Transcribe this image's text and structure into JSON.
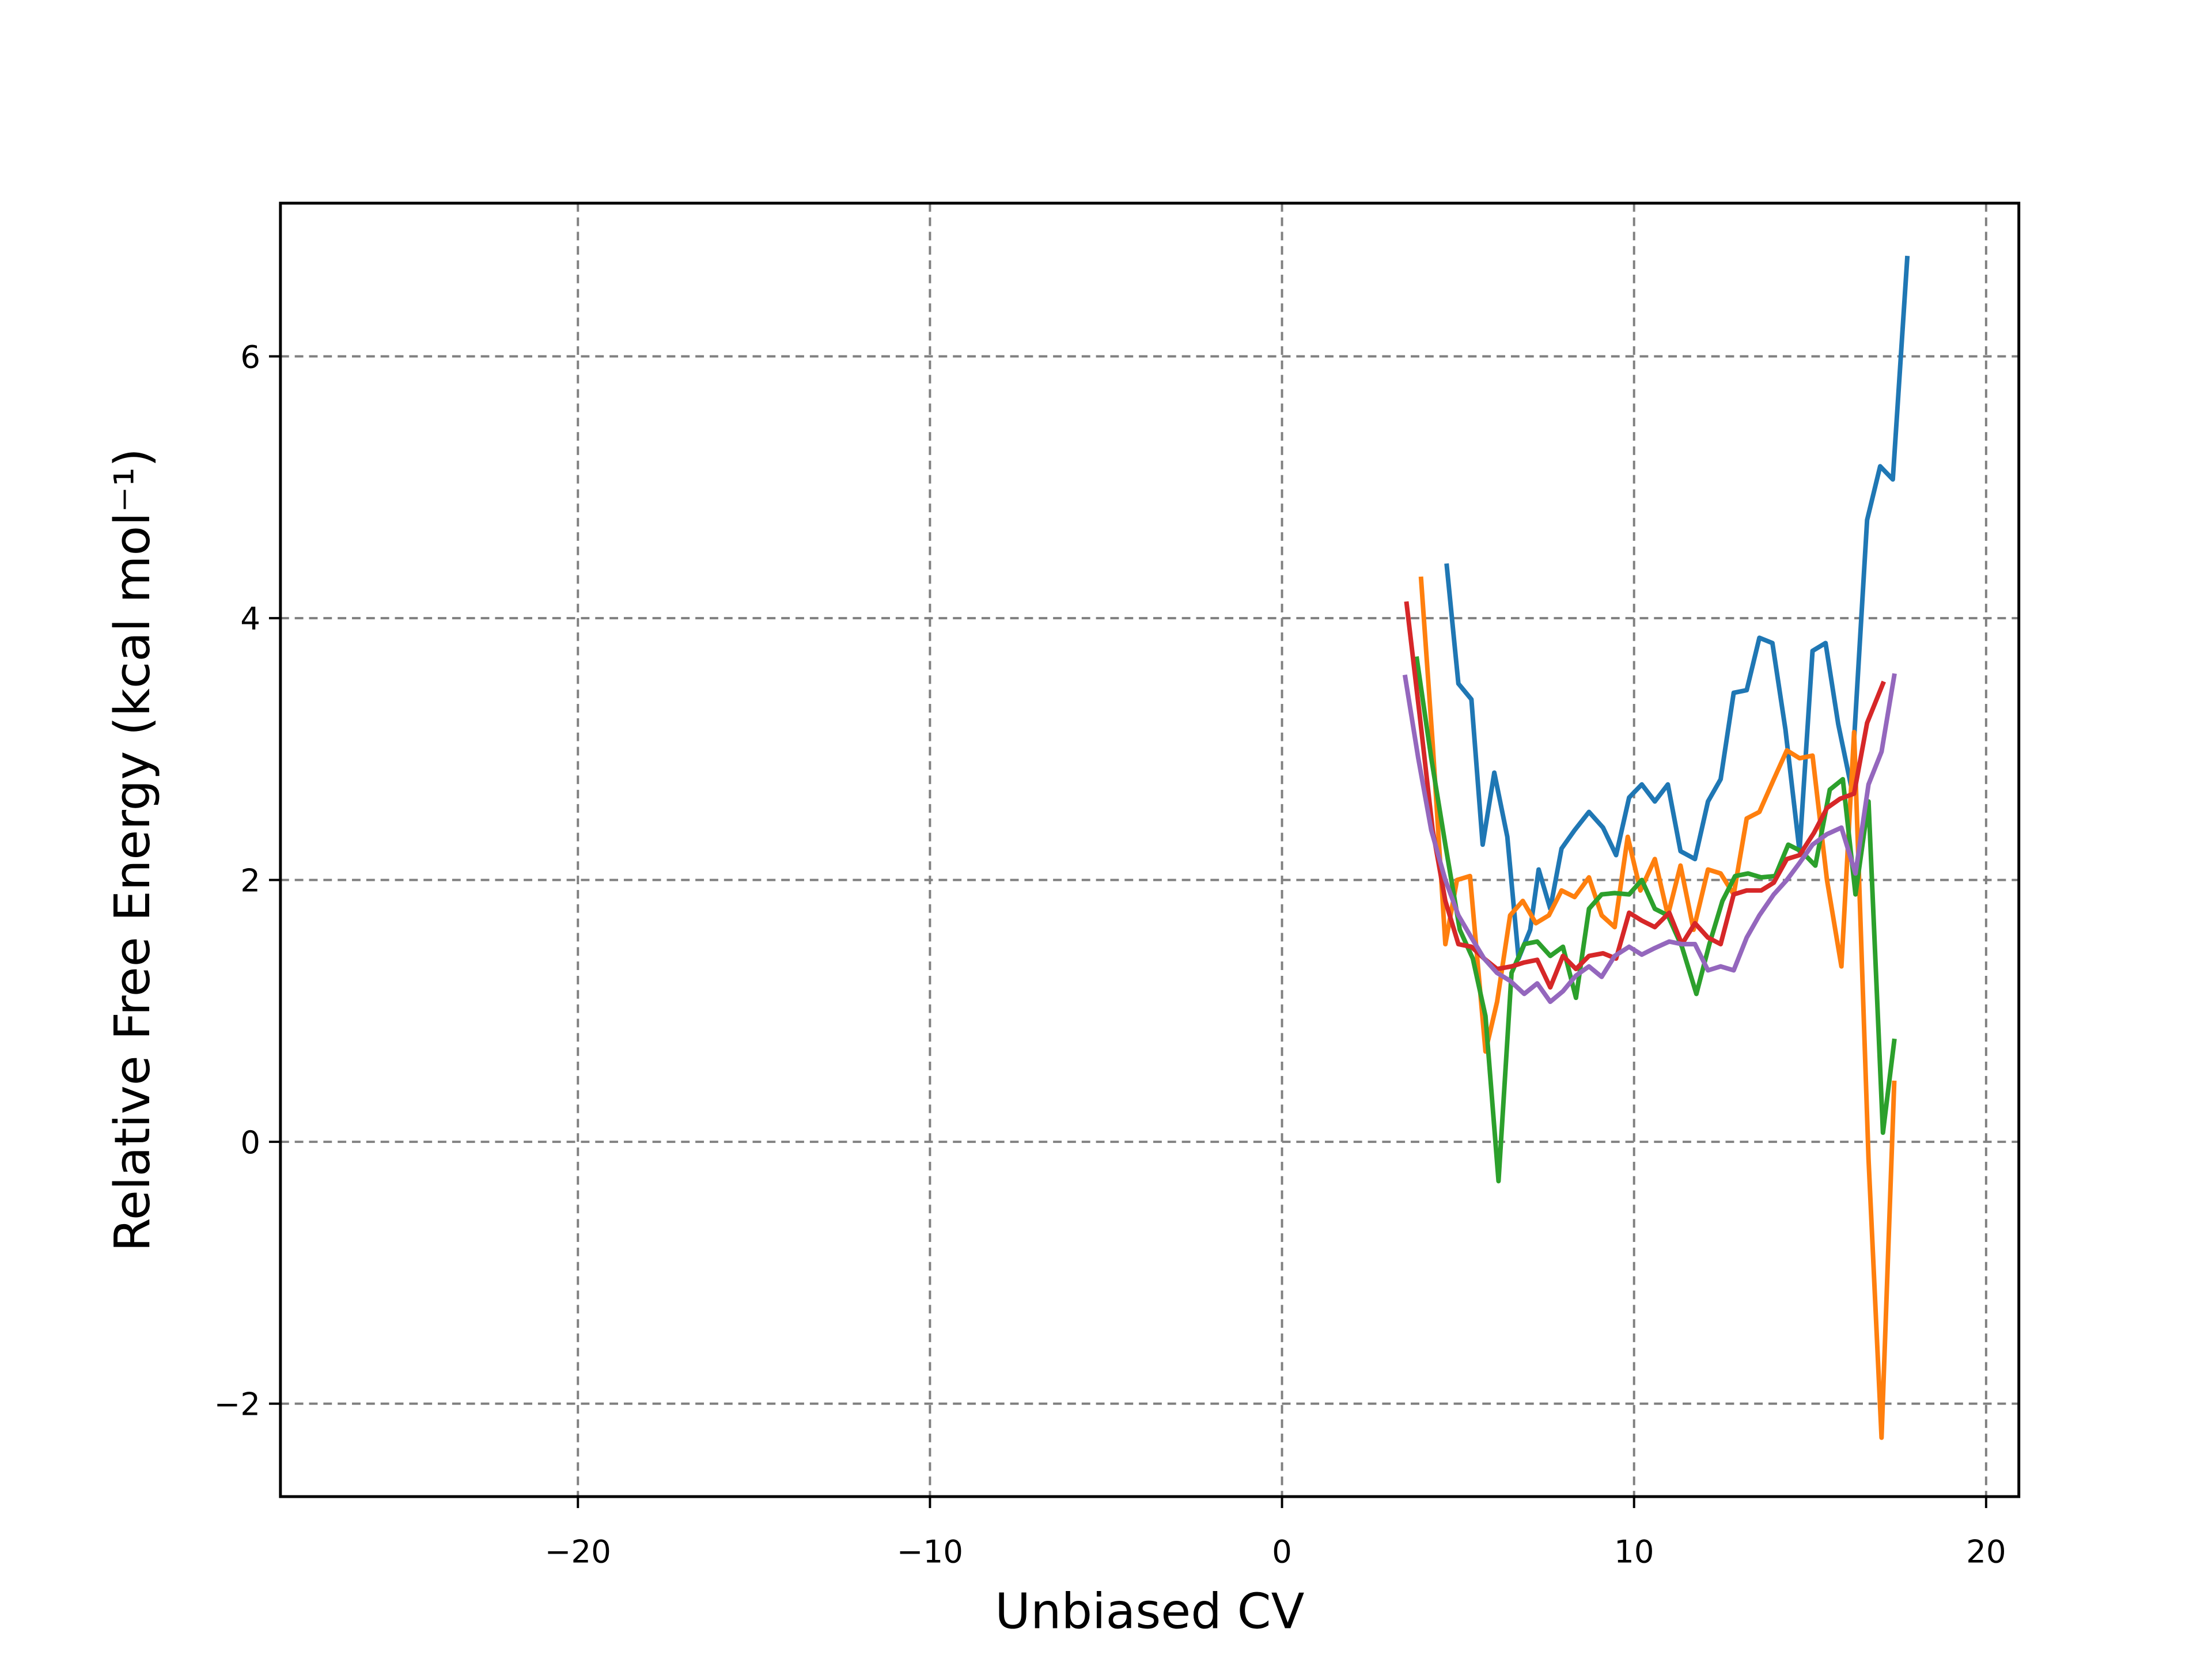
{
  "chart_data": {
    "type": "line",
    "x_label": "Unbiased CV",
    "y_label": "Relative Free Energy (kcal mol⁻¹)",
    "xlim": [
      -28.45,
      20.93
    ],
    "ylim": [
      -2.71,
      7.17
    ],
    "xticks": [
      {
        "value": -20,
        "label": "−20"
      },
      {
        "value": -10,
        "label": "−10"
      },
      0,
      10,
      20
    ],
    "yticks": [
      {
        "value": -2,
        "label": "−2"
      },
      0,
      2,
      4,
      6
    ],
    "grid": true,
    "series": [
      {
        "color": "#1f77b4",
        "x": [
          4.68,
          5.01,
          5.38,
          5.7,
          6.03,
          6.4,
          6.72,
          7.05,
          7.29,
          7.62,
          7.94,
          8.31,
          8.72,
          9.12,
          9.49,
          9.86,
          10.22,
          10.59,
          10.96,
          11.32,
          11.73,
          12.1,
          12.46,
          12.83,
          13.2,
          13.56,
          13.93,
          14.3,
          14.7,
          15.07,
          15.44,
          15.8,
          16.17,
          16.62,
          16.99,
          17.35,
          17.76
        ],
        "values": [
          4.4,
          3.5,
          3.38,
          2.27,
          2.82,
          2.33,
          1.4,
          1.62,
          2.08,
          1.78,
          2.24,
          2.38,
          2.52,
          2.4,
          2.19,
          2.63,
          2.73,
          2.6,
          2.73,
          2.22,
          2.16,
          2.6,
          2.77,
          3.43,
          3.45,
          3.85,
          3.81,
          3.15,
          2.22,
          3.75,
          3.81,
          3.19,
          2.71,
          4.75,
          5.16,
          5.06,
          6.75
        ]
      },
      {
        "color": "#ff7f0e",
        "x": [
          3.95,
          4.28,
          4.64,
          4.97,
          5.34,
          5.78,
          6.11,
          6.48,
          6.84,
          7.21,
          7.58,
          7.94,
          8.31,
          8.72,
          9.08,
          9.45,
          9.82,
          10.18,
          10.59,
          10.96,
          11.32,
          11.69,
          12.1,
          12.46,
          12.83,
          13.2,
          13.56,
          13.97,
          14.34,
          14.7,
          15.07,
          15.48,
          15.89,
          16.25,
          16.66,
          17.03,
          17.39
        ],
        "values": [
          4.3,
          3.04,
          1.51,
          2.0,
          2.03,
          0.69,
          1.07,
          1.73,
          1.84,
          1.67,
          1.73,
          1.92,
          1.87,
          2.02,
          1.73,
          1.64,
          2.33,
          1.92,
          2.16,
          1.73,
          2.11,
          1.62,
          2.08,
          2.05,
          1.89,
          2.47,
          2.52,
          2.77,
          2.99,
          2.93,
          2.95,
          2.0,
          1.34,
          3.13,
          -0.13,
          -2.26,
          0.45
        ]
      },
      {
        "color": "#2ca02c",
        "x": [
          3.83,
          4.24,
          4.64,
          5.05,
          5.42,
          5.78,
          6.15,
          6.52,
          6.88,
          7.25,
          7.62,
          7.98,
          8.35,
          8.72,
          9.08,
          9.45,
          9.86,
          10.22,
          10.59,
          10.96,
          11.36,
          11.77,
          12.14,
          12.51,
          12.87,
          13.24,
          13.61,
          14.01,
          14.38,
          14.75,
          15.15,
          15.56,
          15.93,
          16.29,
          16.66,
          17.07,
          17.39
        ],
        "values": [
          3.69,
          2.93,
          2.27,
          1.62,
          1.4,
          0.96,
          -0.3,
          1.29,
          1.51,
          1.53,
          1.42,
          1.49,
          1.1,
          1.78,
          1.89,
          1.9,
          1.89,
          2.0,
          1.78,
          1.73,
          1.49,
          1.13,
          1.51,
          1.84,
          2.03,
          2.05,
          2.02,
          2.03,
          2.27,
          2.22,
          2.11,
          2.69,
          2.77,
          1.89,
          2.6,
          0.07,
          0.77
        ]
      },
      {
        "color": "#d62728",
        "x": [
          3.54,
          3.91,
          4.28,
          4.64,
          5.01,
          5.38,
          5.74,
          6.11,
          6.52,
          6.88,
          7.25,
          7.62,
          7.98,
          8.35,
          8.72,
          9.12,
          9.49,
          9.86,
          10.22,
          10.59,
          11.0,
          11.36,
          11.73,
          12.1,
          12.46,
          12.83,
          13.2,
          13.61,
          13.97,
          14.34,
          14.7,
          15.11,
          15.48,
          15.85,
          16.25,
          16.62,
          17.07
        ],
        "values": [
          4.11,
          3.26,
          2.38,
          1.84,
          1.51,
          1.49,
          1.4,
          1.32,
          1.34,
          1.37,
          1.39,
          1.18,
          1.42,
          1.32,
          1.42,
          1.44,
          1.4,
          1.75,
          1.69,
          1.64,
          1.75,
          1.51,
          1.67,
          1.56,
          1.51,
          1.89,
          1.92,
          1.92,
          1.98,
          2.16,
          2.19,
          2.36,
          2.55,
          2.62,
          2.66,
          3.2,
          3.5
        ]
      },
      {
        "color": "#9467bd",
        "x": [
          3.5,
          3.87,
          4.24,
          4.64,
          5.01,
          5.38,
          5.74,
          6.11,
          6.48,
          6.88,
          7.25,
          7.62,
          7.98,
          8.35,
          8.72,
          9.08,
          9.45,
          9.86,
          10.22,
          10.59,
          11.0,
          11.36,
          11.73,
          12.1,
          12.46,
          12.83,
          13.2,
          13.56,
          13.97,
          14.34,
          14.7,
          15.07,
          15.48,
          15.89,
          16.29,
          16.66,
          17.03,
          17.39
        ],
        "values": [
          3.55,
          2.93,
          2.38,
          2.0,
          1.73,
          1.56,
          1.4,
          1.29,
          1.23,
          1.13,
          1.21,
          1.07,
          1.15,
          1.27,
          1.34,
          1.26,
          1.42,
          1.49,
          1.43,
          1.48,
          1.53,
          1.51,
          1.51,
          1.31,
          1.34,
          1.31,
          1.56,
          1.73,
          1.89,
          2.0,
          2.13,
          2.27,
          2.35,
          2.4,
          2.05,
          2.73,
          2.98,
          3.56
        ]
      }
    ]
  }
}
